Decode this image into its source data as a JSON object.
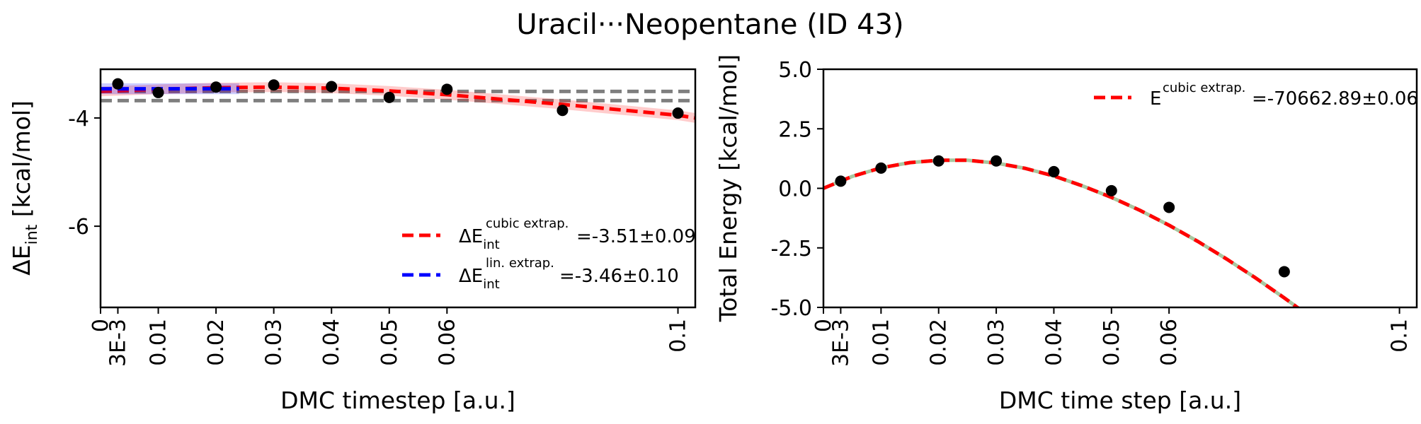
{
  "figure_title": "Uracil···Neopentane (ID 43)",
  "chart_data": [
    {
      "type": "line",
      "name": "left",
      "xlabel": "DMC timestep [a.u.]",
      "ylabel_prefix": "ΔE",
      "ylabel_sub": "int",
      "ylabel_suffix": " [kcal/mol]",
      "xlim": [
        0,
        0.103
      ],
      "ylim": [
        -7.5,
        -3.1
      ],
      "xticks": [
        0,
        0.003,
        0.01,
        0.02,
        0.03,
        0.04,
        0.05,
        0.06,
        0.1
      ],
      "xtick_labels": [
        "0",
        "3E-3",
        "0.01",
        "0.02",
        "0.03",
        "0.04",
        "0.05",
        "0.06",
        "0.1"
      ],
      "yticks": [
        -4,
        -6
      ],
      "ytick_labels": [
        "-4",
        "-6"
      ],
      "points": {
        "x": [
          0.003,
          0.01,
          0.02,
          0.03,
          0.04,
          0.05,
          0.06,
          0.08,
          0.1
        ],
        "y": [
          -3.37,
          -3.53,
          -3.43,
          -3.39,
          -3.42,
          -3.62,
          -3.47,
          -3.86,
          -3.91
        ]
      },
      "reference_lines": [
        -3.51,
        -3.68
      ],
      "series": [
        {
          "name": "cubic",
          "label_prefix": "ΔE",
          "label_sub": "int",
          "label_sup": "cubic extrap.",
          "label_value": "=-3.51±0.09",
          "color": "#ff0000",
          "x": [
            0,
            0.01,
            0.02,
            0.03,
            0.04,
            0.05,
            0.06,
            0.07,
            0.08,
            0.09,
            0.1,
            0.103
          ],
          "y": [
            -3.51,
            -3.47,
            -3.44,
            -3.43,
            -3.45,
            -3.5,
            -3.57,
            -3.66,
            -3.75,
            -3.85,
            -3.95,
            -4.0
          ],
          "band": 0.09
        },
        {
          "name": "linear",
          "label_prefix": "ΔE",
          "label_sub": "int",
          "label_sup": "lin. extrap.",
          "label_value": "=-3.46±0.10",
          "color": "#0000ff",
          "x": [
            0,
            0.024
          ],
          "y": [
            -3.46,
            -3.46
          ],
          "band": 0.1
        }
      ]
    },
    {
      "type": "line",
      "name": "right",
      "xlabel": "DMC time step [a.u.]",
      "ylabel": "Total Energy [kcal/mol]",
      "xlim": [
        0,
        0.103
      ],
      "ylim": [
        -5.0,
        5.0
      ],
      "xticks": [
        0,
        0.003,
        0.01,
        0.02,
        0.03,
        0.04,
        0.05,
        0.06,
        0.1
      ],
      "xtick_labels": [
        "0",
        "3E-3",
        "0.01",
        "0.02",
        "0.03",
        "0.04",
        "0.05",
        "0.06",
        "0.1"
      ],
      "yticks": [
        5.0,
        2.5,
        0.0,
        -2.5,
        -5.0
      ],
      "ytick_labels": [
        "5.0",
        "2.5",
        "0.0",
        "-2.5",
        "-5.0"
      ],
      "points": {
        "x": [
          0.003,
          0.01,
          0.02,
          0.03,
          0.04,
          0.05,
          0.06,
          0.08
        ],
        "y": [
          0.3,
          0.85,
          1.15,
          1.15,
          0.7,
          -0.1,
          -0.8,
          -3.5
        ]
      },
      "series": [
        {
          "name": "cubic",
          "label_prefix": "E",
          "label_sup": "cubic extrap.",
          "label_value": "=-70662.89±0.06",
          "color": "#ff0000",
          "x": [
            0,
            0.005,
            0.01,
            0.015,
            0.02,
            0.025,
            0.03,
            0.035,
            0.04,
            0.045,
            0.05,
            0.055,
            0.06,
            0.065,
            0.07,
            0.075,
            0.08,
            0.085,
            0.09
          ],
          "y": [
            0.0,
            0.5,
            0.86,
            1.08,
            1.18,
            1.18,
            1.06,
            0.84,
            0.52,
            0.1,
            -0.38,
            -0.93,
            -1.55,
            -2.23,
            -2.97,
            -3.76,
            -4.6,
            -5.48,
            -6.4
          ]
        }
      ]
    }
  ]
}
